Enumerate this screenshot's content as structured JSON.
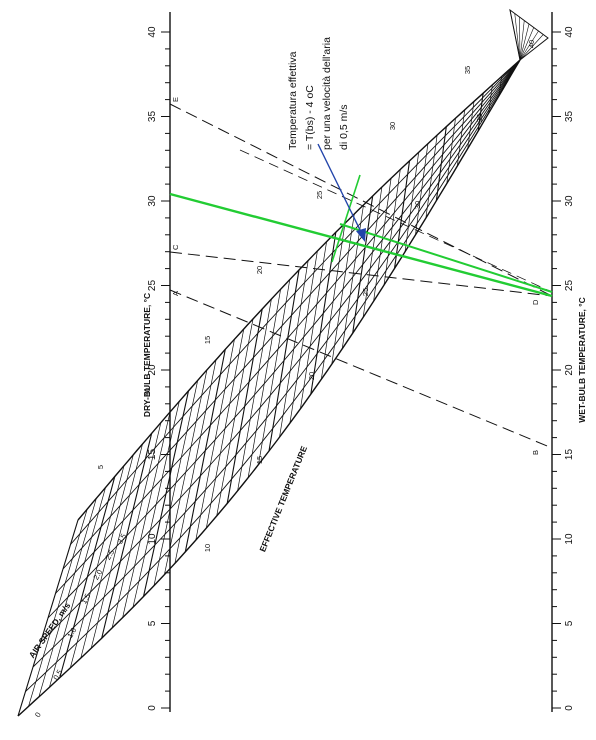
{
  "axes": {
    "dry_bulb_title": "DRY-BULB TEMPERATURE, °C",
    "wet_bulb_title": "WET-BULB TEMPERATURE, °C",
    "effective_title": "EFFECTIVE TEMPERATURE",
    "air_speed_title": "AIR SPEED, m/s",
    "dry_bulb_ticks": [
      "0",
      "5",
      "10",
      "15",
      "20",
      "25",
      "30",
      "35",
      "40"
    ],
    "wet_bulb_ticks": [
      "0",
      "5",
      "10",
      "15",
      "20",
      "25",
      "30",
      "35",
      "40"
    ],
    "effective_ticks": [
      "10",
      "15",
      "20",
      "25",
      "30",
      "35",
      "40"
    ],
    "upper_et_ticks": [
      "5",
      "10",
      "15",
      "20",
      "25",
      "30",
      "35"
    ],
    "air_speed_ticks": [
      "0",
      "0.5",
      "1.0",
      "1.5",
      "2.0",
      "2.5",
      "3.5"
    ]
  },
  "annotation": {
    "line1": "Temperatura effettiva",
    "line2": "= T(bs) - 4 oC",
    "line3": "per una velocità dell'aria",
    "line4": "di 0,5 m/s"
  },
  "reference_lines": [
    {
      "label": "A"
    },
    {
      "label": "B"
    },
    {
      "label": "C"
    },
    {
      "label": "D"
    },
    {
      "label": "E"
    }
  ],
  "colors": {
    "ink": "#111111",
    "highlight": "#22cc33",
    "arrow": "#2244aa"
  }
}
